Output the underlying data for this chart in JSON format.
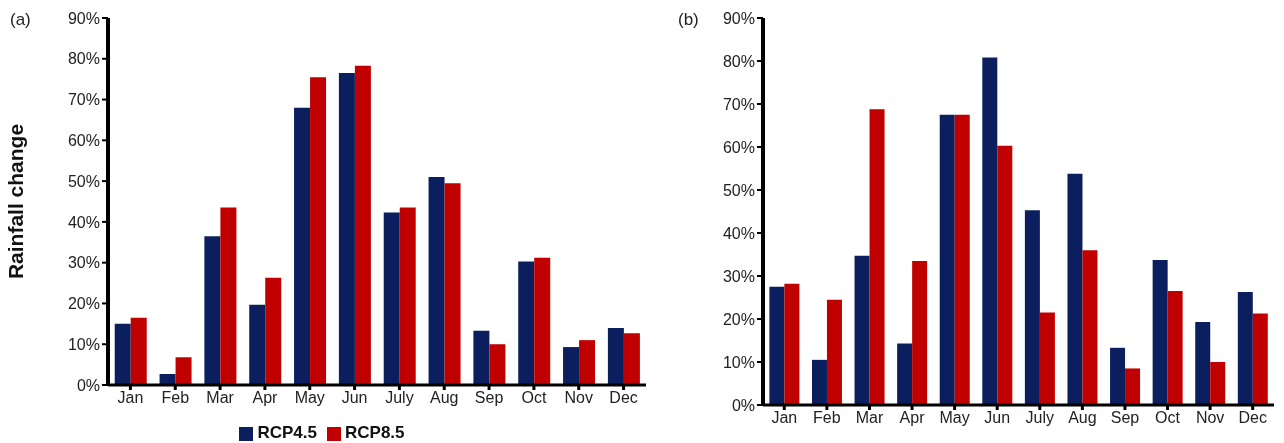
{
  "chart_data": [
    {
      "type": "bar",
      "title": "(a)",
      "ylabel": "Rainfall change",
      "categories": [
        "Jan",
        "Feb",
        "Mar",
        "Apr",
        "May",
        "Jun",
        "July",
        "Aug",
        "Sep",
        "Oct",
        "Nov",
        "Dec"
      ],
      "series": [
        {
          "name": "RCP4.5",
          "color": "#0b1f5e",
          "values": [
            15,
            2.7,
            36.5,
            19.7,
            68,
            76.5,
            42.3,
            51,
            13.3,
            30.3,
            9.3,
            14
          ]
        },
        {
          "name": "RCP8.5",
          "color": "#c00000",
          "values": [
            16.5,
            6.8,
            43.5,
            26.3,
            75.5,
            78.3,
            43.5,
            49.5,
            10,
            31.2,
            11,
            12.7
          ]
        }
      ],
      "ylim": [
        0,
        90
      ],
      "yticks": [
        {
          "value": 0,
          "label": "0%"
        },
        {
          "value": 10,
          "label": "10%"
        },
        {
          "value": 20,
          "label": "20%"
        },
        {
          "value": 30,
          "label": "30%"
        },
        {
          "value": 40,
          "label": "40%"
        },
        {
          "value": 50,
          "label": "50%"
        },
        {
          "value": 60,
          "label": "60%"
        },
        {
          "value": 70,
          "label": "70%"
        },
        {
          "value": 80,
          "label": "80%"
        },
        {
          "value": 90,
          "label": "90%"
        }
      ],
      "grid": false,
      "legend": "bottom"
    },
    {
      "type": "bar",
      "title": "(b)",
      "categories": [
        "Jan",
        "Feb",
        "Mar",
        "Apr",
        "May",
        "Jun",
        "July",
        "Aug",
        "Sep",
        "Oct",
        "Nov",
        "Dec"
      ],
      "series": [
        {
          "color": "#0b1f5e",
          "values": [
            27.5,
            10.5,
            34.7,
            14.3,
            67.5,
            80.8,
            45.3,
            53.8,
            13.3,
            33.7,
            19.3,
            26.3
          ]
        },
        {
          "color": "#c00000",
          "values": [
            28.2,
            24.5,
            68.8,
            33.5,
            67.5,
            60.3,
            21.5,
            36,
            8.5,
            26.5,
            10,
            21.3
          ]
        }
      ],
      "ylim": [
        0,
        90
      ],
      "yticks": [
        {
          "value": 0,
          "label": "0%"
        },
        {
          "value": 10,
          "label": "10%"
        },
        {
          "value": 20,
          "label": "20%"
        },
        {
          "value": 30,
          "label": "30%"
        },
        {
          "value": 40,
          "label": "40%"
        },
        {
          "value": 50,
          "label": "50%"
        },
        {
          "value": 60,
          "label": "60%"
        },
        {
          "value": 70,
          "label": "70%"
        },
        {
          "value": 80,
          "label": "80%"
        },
        {
          "value": 90,
          "label": "90%"
        }
      ],
      "grid": false,
      "legend": false
    }
  ]
}
